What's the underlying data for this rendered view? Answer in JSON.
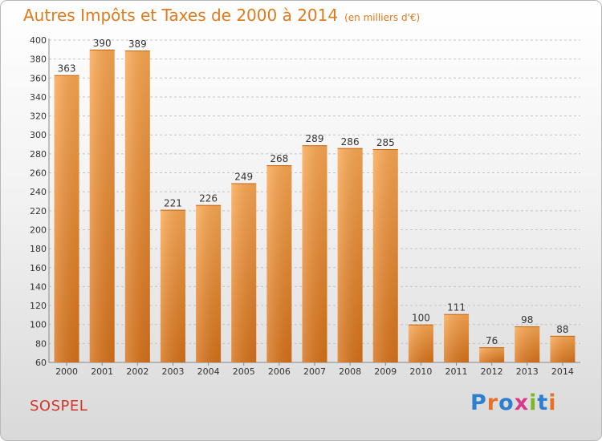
{
  "page": {
    "title": "Autres Impôts et Taxes de 2000 à 2014",
    "title_unit": "(en milliers d'€)",
    "city": "SOSPEL",
    "logo": "Proxiti"
  },
  "colors": {
    "title": "#e07a1c",
    "city": "#d2362b",
    "bar_light": "#f9a24a",
    "bar_dark": "#d8731a",
    "grid": "#c4c4c4"
  },
  "chart_data": {
    "type": "bar",
    "title": "Autres Impôts et Taxes de 2000 à 2014",
    "subtitle": "(en milliers d'€)",
    "categories": [
      "2000",
      "2001",
      "2002",
      "2003",
      "2004",
      "2005",
      "2006",
      "2007",
      "2008",
      "2009",
      "2010",
      "2011",
      "2012",
      "2013",
      "2014"
    ],
    "values": [
      363,
      390,
      389,
      221,
      226,
      249,
      268,
      289,
      286,
      285,
      100,
      111,
      76,
      98,
      88
    ],
    "ylim": [
      60,
      400
    ],
    "ytick_step": 20,
    "grid": "horizontal dashed",
    "xlabel": "",
    "ylabel": ""
  }
}
